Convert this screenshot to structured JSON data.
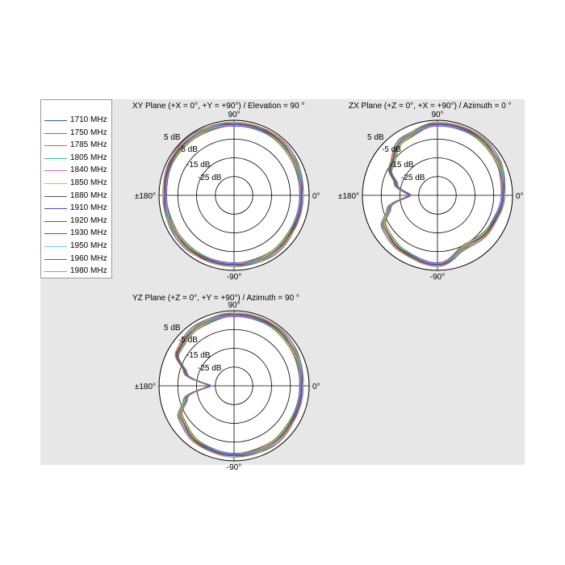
{
  "legend": [
    {
      "label": "1710 MHz",
      "color": "#2f57c8"
    },
    {
      "label": "1750 MHz",
      "color": "#2f9a55"
    },
    {
      "label": "1785 MHz",
      "color": "#e8593a"
    },
    {
      "label": "1805 MHz",
      "color": "#3cbcc4"
    },
    {
      "label": "1840 MHz",
      "color": "#c86ad0"
    },
    {
      "label": "1850 MHz",
      "color": "#c7c63a"
    },
    {
      "label": "1880 MHz",
      "color": "#555555"
    },
    {
      "label": "1910 MHz",
      "color": "#4a4ad8"
    },
    {
      "label": "1920 MHz",
      "color": "#2c7a2c"
    },
    {
      "label": "1930 MHz",
      "color": "#d22a2a"
    },
    {
      "label": "1950 MHz",
      "color": "#6fd0e0"
    },
    {
      "label": "1960 MHz",
      "color": "#9a3aa8"
    },
    {
      "label": "1980 MHz",
      "color": "#a6a64a"
    }
  ],
  "chart_data": [
    {
      "type": "polar",
      "title": "XY Plane (+X = 0°, +Y = +90°) / Elevation = 90 °",
      "angle_labels": {
        "top": "90°",
        "right": "0°",
        "bottom": "-90°",
        "left": "±180°"
      },
      "r_labels": [
        "5 dB",
        "-5 dB",
        "-15 dB",
        "-25 dB"
      ],
      "r_values": [
        5,
        -5,
        -15,
        -25
      ],
      "rlim": [
        -35,
        5
      ],
      "pattern": {
        "angles": [
          0,
          30,
          60,
          90,
          120,
          150,
          180,
          210,
          240,
          270,
          300,
          330
        ],
        "gain_db": [
          1,
          2,
          3,
          3,
          3,
          3,
          2,
          2,
          2,
          2,
          2,
          1
        ]
      }
    },
    {
      "type": "polar",
      "title": "ZX Plane (+Z = 0°, +X = +90°) / Azimuth = 0 °",
      "angle_labels": {
        "top": "90°",
        "right": "0°",
        "bottom": "-90°",
        "left": "±180°"
      },
      "r_labels": [
        "5 dB",
        "-5 dB",
        "-15 dB",
        "-25 dB"
      ],
      "r_values": [
        5,
        -5,
        -15,
        -25
      ],
      "rlim": [
        -35,
        5
      ],
      "pattern": {
        "angles": [
          0,
          30,
          60,
          90,
          120,
          150,
          165,
          180,
          195,
          210,
          240,
          270,
          300,
          330
        ],
        "gain_db": [
          0,
          2,
          3,
          3,
          0,
          -6,
          -12,
          -20,
          -8,
          -2,
          0,
          2,
          -4,
          -2
        ]
      }
    },
    {
      "type": "polar",
      "title": "YZ Plane (+Z = 0°, +Y = +90°) / Azimuth = 90 °",
      "angle_labels": {
        "top": "90°",
        "right": "0°",
        "bottom": "-90°",
        "left": "±180°"
      },
      "r_labels": [
        "5 dB",
        "-5 dB",
        "-15 dB",
        "-25 dB"
      ],
      "r_values": [
        5,
        -5,
        -15,
        -25
      ],
      "rlim": [
        -35,
        5
      ],
      "pattern": {
        "angles": [
          0,
          30,
          60,
          90,
          120,
          150,
          165,
          180,
          195,
          210,
          240,
          270,
          300,
          330
        ],
        "gain_db": [
          1,
          2,
          3,
          3,
          2,
          0,
          -8,
          -22,
          -8,
          -2,
          1,
          2,
          2,
          1
        ]
      }
    }
  ]
}
